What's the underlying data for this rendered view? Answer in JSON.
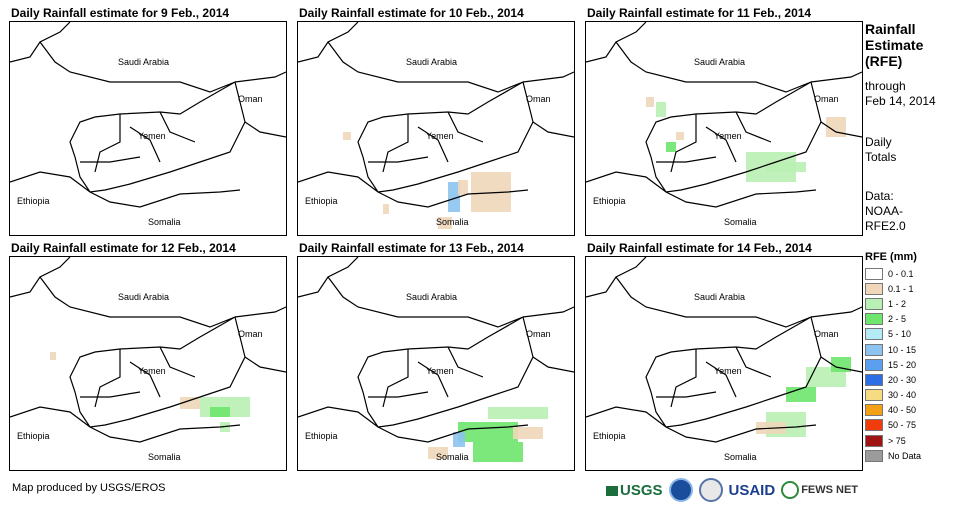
{
  "panels": [
    {
      "title": "Daily Rainfall estimate for 9 Feb., 2014"
    },
    {
      "title": "Daily Rainfall estimate for 10 Feb., 2014"
    },
    {
      "title": "Daily Rainfall estimate for 11 Feb., 2014"
    },
    {
      "title": "Daily Rainfall estimate for 12 Feb., 2014"
    },
    {
      "title": "Daily Rainfall estimate for 13 Feb., 2014"
    },
    {
      "title": "Daily Rainfall estimate for 14 Feb., 2014"
    }
  ],
  "map_labels": {
    "saudi_arabia": "Saudi Arabia",
    "oman": "Oman",
    "yemen": "Yemen",
    "ethiopia": "Ethiopia",
    "somalia": "Somalia"
  },
  "legend": {
    "title_line1": "Rainfall",
    "title_line2": "Estimate",
    "title_line3": "(RFE)",
    "through": "through",
    "date": "Feb 14, 2014",
    "daily": "Daily",
    "totals": "Totals",
    "data_label": "Data:",
    "source_line1": "NOAA-",
    "source_line2": "RFE2.0",
    "units": "RFE (mm)",
    "classes": [
      {
        "label": "0 - 0.1",
        "color": "#ffffff"
      },
      {
        "label": "0.1 - 1",
        "color": "#f0d7b9"
      },
      {
        "label": "1 - 2",
        "color": "#b9f0b4"
      },
      {
        "label": "2 - 5",
        "color": "#6ee66e"
      },
      {
        "label": "5 - 10",
        "color": "#b4ebf5"
      },
      {
        "label": "10 - 15",
        "color": "#8cc3f0"
      },
      {
        "label": "15 - 20",
        "color": "#5aa0ee"
      },
      {
        "label": "20 - 30",
        "color": "#2d6ee6"
      },
      {
        "label": "30 - 40",
        "color": "#f5dc82"
      },
      {
        "label": "40 - 50",
        "color": "#f5a014"
      },
      {
        "label": "50 - 75",
        "color": "#f03c0a"
      },
      {
        "label": "> 75",
        "color": "#a01414"
      },
      {
        "label": "No Data",
        "color": "#9b9b9b"
      }
    ]
  },
  "credit": "Map produced by USGS/EROS",
  "logos": {
    "usgs": "USGS",
    "usaid": "USAID",
    "fews": "FEWS NET"
  }
}
